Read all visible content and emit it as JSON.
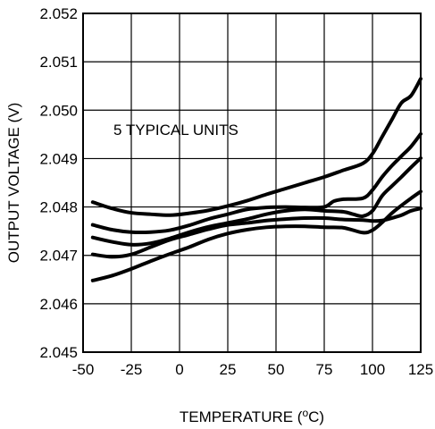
{
  "chart_data": {
    "type": "line",
    "title": "",
    "xlabel": "TEMPERATURE (",
    "xlabel_super": "o",
    "xlabel_tail": "C)",
    "ylabel": "OUTPUT VOLTAGE (V)",
    "annotation": "5 TYPICAL UNITS",
    "xlim": [
      -50,
      125
    ],
    "ylim": [
      2.045,
      2.052
    ],
    "xticks": [
      -50,
      -25,
      0,
      25,
      50,
      75,
      100,
      125
    ],
    "xtick_labels": [
      "-50",
      "-25",
      "0",
      "25",
      "50",
      "75",
      "100",
      "125"
    ],
    "yticks": [
      2.045,
      2.046,
      2.047,
      2.048,
      2.049,
      2.05,
      2.051,
      2.052
    ],
    "ytick_labels": [
      "2.045",
      "2.046",
      "2.047",
      "2.048",
      "2.049",
      "2.050",
      "2.051",
      "2.052"
    ],
    "grid": true,
    "line_color": "#000000",
    "series": [
      {
        "x": [
          -45,
          -35,
          -25,
          -15,
          -5,
          5,
          15,
          25,
          35,
          45,
          55,
          65,
          75,
          85,
          95,
          100,
          105,
          110,
          115,
          120,
          125
        ],
        "y": [
          2.0481,
          2.04797,
          2.04788,
          2.04785,
          2.04783,
          2.04787,
          2.04793,
          2.04802,
          2.04813,
          2.04826,
          2.04838,
          2.0485,
          2.04862,
          2.04876,
          2.0489,
          2.0491,
          2.04945,
          2.0498,
          2.05015,
          2.0503,
          2.05065
        ]
      },
      {
        "x": [
          -45,
          -35,
          -25,
          -15,
          -5,
          5,
          15,
          25,
          35,
          45,
          55,
          65,
          75,
          80,
          85,
          95,
          100,
          105,
          110,
          115,
          120,
          125
        ],
        "y": [
          2.04763,
          2.04753,
          2.04748,
          2.04748,
          2.04752,
          2.04762,
          2.04775,
          2.04785,
          2.04795,
          2.04799,
          2.048,
          2.04799,
          2.048,
          2.04812,
          2.04816,
          2.04818,
          2.04835,
          2.04862,
          2.04885,
          2.04905,
          2.04925,
          2.04951
        ]
      },
      {
        "x": [
          -45,
          -35,
          -25,
          -15,
          -5,
          5,
          15,
          25,
          35,
          45,
          55,
          65,
          75,
          85,
          90,
          95,
          100,
          105,
          110,
          115,
          120,
          125
        ],
        "y": [
          2.04737,
          2.04728,
          2.04722,
          2.04725,
          2.04735,
          2.04748,
          2.04759,
          2.04767,
          2.04775,
          2.04785,
          2.04792,
          2.04795,
          2.04792,
          2.0479,
          2.04785,
          2.04781,
          2.04792,
          2.04823,
          2.04843,
          2.04862,
          2.04882,
          2.04901
        ]
      },
      {
        "x": [
          -45,
          -35,
          -25,
          -15,
          -5,
          5,
          15,
          25,
          35,
          45,
          55,
          65,
          75,
          85,
          95,
          100,
          105,
          110,
          115,
          120,
          125
        ],
        "y": [
          2.04702,
          2.04697,
          2.04702,
          2.04717,
          2.04732,
          2.04743,
          2.04754,
          2.04763,
          2.04767,
          2.04772,
          2.04775,
          2.04777,
          2.04777,
          2.04774,
          2.04773,
          2.04771,
          2.04772,
          2.04777,
          2.04783,
          2.04792,
          2.04797
        ]
      },
      {
        "x": [
          -45,
          -35,
          -25,
          -15,
          -5,
          5,
          15,
          25,
          35,
          45,
          55,
          65,
          75,
          85,
          95,
          100,
          105,
          110,
          115,
          120,
          125
        ],
        "y": [
          2.04648,
          2.04658,
          2.04672,
          2.04688,
          2.04703,
          2.04717,
          2.04733,
          2.04745,
          2.04753,
          2.04758,
          2.0476,
          2.0476,
          2.04758,
          2.04757,
          2.04747,
          2.04752,
          2.04768,
          2.04787,
          2.04803,
          2.04818,
          2.04832
        ]
      }
    ]
  }
}
